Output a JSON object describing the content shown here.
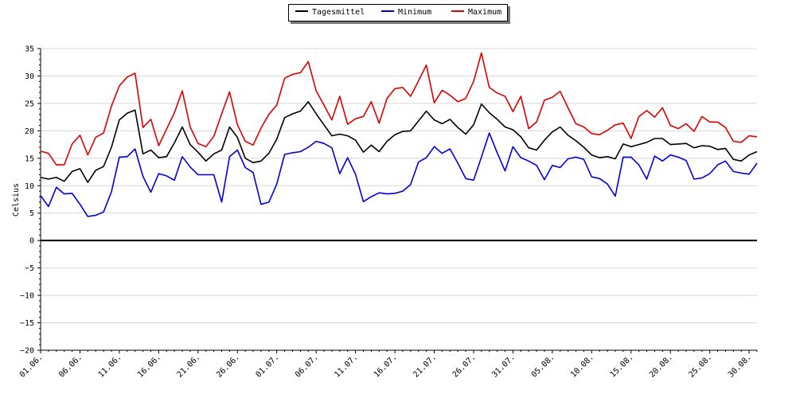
{
  "legend": {
    "items": [
      {
        "label": "Tagesmittel",
        "color": "#000000"
      },
      {
        "label": "Minimum",
        "color": "#0000dd"
      },
      {
        "label": "Maximum",
        "color": "#dd0000"
      }
    ]
  },
  "chart_data": {
    "type": "line",
    "ylabel": "Celsius",
    "ylim": [
      -20,
      35
    ],
    "yticks": [
      -20,
      -15,
      -10,
      -5,
      0,
      5,
      10,
      15,
      20,
      25,
      30,
      35
    ],
    "grid": true,
    "legend_position": "top-center",
    "x_start": "01.06.",
    "x_labels": [
      "01.06.",
      "06.06.",
      "11.06.",
      "16.06.",
      "21.06.",
      "26.06.",
      "01.07.",
      "06.07.",
      "11.07.",
      "16.07.",
      "21.07.",
      "26.07.",
      "31.07.",
      "05.08.",
      "10.08.",
      "15.08.",
      "20.08.",
      "25.08.",
      "30.08."
    ],
    "series": [
      {
        "name": "Tagesmittel",
        "color": "#000000",
        "values": [
          11.5,
          11.2,
          11.5,
          10.8,
          12.6,
          13.1,
          10.6,
          12.8,
          13.5,
          17.0,
          22.0,
          23.2,
          23.8,
          15.8,
          16.5,
          15.1,
          15.3,
          17.8,
          20.7,
          17.5,
          16.1,
          14.5,
          15.8,
          16.5,
          20.7,
          18.8,
          15.0,
          14.2,
          14.5,
          15.9,
          18.5,
          22.4,
          23.1,
          23.6,
          25.3,
          23.1,
          21.1,
          19.1,
          19.4,
          19.1,
          18.3,
          16.1,
          17.4,
          16.2,
          18.1,
          19.3,
          19.9,
          20.0,
          21.8,
          23.6,
          22.0,
          21.3,
          22.1,
          20.6,
          19.4,
          21.1,
          24.9,
          23.3,
          22.1,
          20.7,
          20.2,
          18.9,
          16.9,
          16.5,
          18.3,
          19.8,
          20.7,
          19.2,
          18.2,
          17.0,
          15.6,
          15.1,
          15.3,
          14.9,
          17.6,
          17.1,
          17.5,
          17.9,
          18.6,
          18.6,
          17.5,
          17.6,
          17.7,
          16.9,
          17.3,
          17.2,
          16.6,
          16.8,
          14.8,
          14.5,
          15.6,
          16.2
        ]
      },
      {
        "name": "Minimum",
        "color": "#0000dd",
        "values": [
          8.2,
          6.2,
          9.7,
          8.5,
          8.6,
          6.6,
          4.4,
          4.6,
          5.2,
          8.9,
          15.2,
          15.3,
          16.7,
          11.7,
          8.8,
          12.2,
          11.8,
          11.0,
          15.3,
          13.4,
          12.0,
          12.0,
          12.0,
          7.0,
          15.3,
          16.5,
          13.3,
          12.4,
          6.6,
          7.0,
          10.3,
          15.7,
          16.0,
          16.2,
          17.0,
          18.1,
          17.7,
          16.9,
          12.2,
          15.1,
          12.1,
          7.1,
          8.0,
          8.7,
          8.5,
          8.6,
          9.0,
          10.2,
          14.3,
          15.1,
          17.1,
          15.9,
          16.7,
          14.1,
          11.3,
          11.0,
          15.2,
          19.6,
          16.0,
          12.7,
          17.1,
          15.1,
          14.5,
          13.7,
          11.1,
          13.7,
          13.3,
          14.9,
          15.2,
          14.8,
          11.6,
          11.3,
          10.3,
          8.1,
          15.2,
          15.2,
          13.8,
          11.2,
          15.4,
          14.5,
          15.6,
          15.2,
          14.6,
          11.2,
          11.4,
          12.2,
          13.8,
          14.5,
          12.6,
          12.3,
          12.1,
          14.1
        ]
      },
      {
        "name": "Maximum",
        "color": "#dd0000",
        "values": [
          16.3,
          15.9,
          13.8,
          13.8,
          17.6,
          19.2,
          15.6,
          18.8,
          19.6,
          24.5,
          28.2,
          29.8,
          30.5,
          20.6,
          22.1,
          17.3,
          20.3,
          23.3,
          27.3,
          20.7,
          17.7,
          17.1,
          19.0,
          23.1,
          27.1,
          21.1,
          18.1,
          17.4,
          20.5,
          23.0,
          24.7,
          29.6,
          30.3,
          30.6,
          32.6,
          27.3,
          24.7,
          22.0,
          26.3,
          21.2,
          22.2,
          22.6,
          25.3,
          21.4,
          25.9,
          27.7,
          27.9,
          26.3,
          29.1,
          32.0,
          25.1,
          27.4,
          26.5,
          25.3,
          25.9,
          29.0,
          34.2,
          27.9,
          26.9,
          26.3,
          23.5,
          26.3,
          20.4,
          21.6,
          25.6,
          26.1,
          27.2,
          24.2,
          21.3,
          20.7,
          19.5,
          19.3,
          20.1,
          21.1,
          21.4,
          18.6,
          22.6,
          23.7,
          22.5,
          24.2,
          21.0,
          20.4,
          21.3,
          19.9,
          22.6,
          21.6,
          21.6,
          20.6,
          18.1,
          17.9,
          19.1,
          18.9
        ]
      }
    ]
  }
}
